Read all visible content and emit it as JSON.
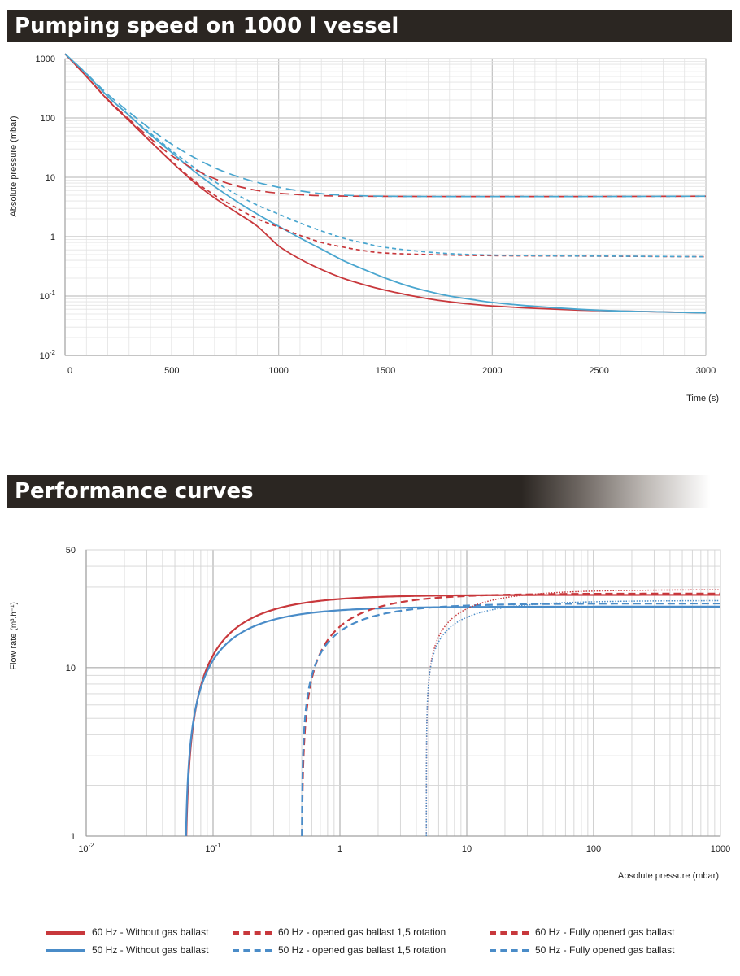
{
  "sections": {
    "pumping_title": "Pumping speed on 1000 l vessel",
    "performance_title": "Performance curves"
  },
  "colors": {
    "red": "#c8383c",
    "blue": "#4a8cc8",
    "teal": "#4aa6cf",
    "dark_blue": "#3a6ea8",
    "grid": "#d9d9d9",
    "banner": "#2b2622"
  },
  "chart_data": [
    {
      "type": "line",
      "title": "Pumping speed on 1000 l vessel",
      "xlabel": "Time (s)",
      "ylabel": "Absolute pressure (mbar)",
      "xlim": [
        0,
        3000
      ],
      "ylim": [
        0.01,
        1000
      ],
      "yscale": "log",
      "grid": true,
      "x_ticks": [
        "0",
        "500",
        "1000",
        "1500",
        "2000",
        "2500",
        "3000"
      ],
      "y_ticks": [
        {
          "base": "1000",
          "exp": ""
        },
        {
          "base": "100",
          "exp": ""
        },
        {
          "base": "10",
          "exp": ""
        },
        {
          "base": "1",
          "exp": ""
        },
        {
          "base": "10",
          "exp": "-1"
        },
        {
          "base": "10",
          "exp": "-2"
        }
      ],
      "series": [
        {
          "color": "red",
          "dash": "solid",
          "points": [
            [
              0,
              1200
            ],
            [
              100,
              500
            ],
            [
              200,
              200
            ],
            [
              300,
              90
            ],
            [
              400,
              40
            ],
            [
              500,
              18
            ],
            [
              600,
              8.5
            ],
            [
              700,
              4.5
            ],
            [
              800,
              2.6
            ],
            [
              900,
              1.5
            ],
            [
              1000,
              0.7
            ],
            [
              1100,
              0.42
            ],
            [
              1200,
              0.28
            ],
            [
              1300,
              0.2
            ],
            [
              1400,
              0.155
            ],
            [
              1500,
              0.125
            ],
            [
              1600,
              0.105
            ],
            [
              1700,
              0.09
            ],
            [
              1800,
              0.08
            ],
            [
              1900,
              0.073
            ],
            [
              2000,
              0.068
            ],
            [
              2200,
              0.062
            ],
            [
              2400,
              0.058
            ],
            [
              2600,
              0.056
            ],
            [
              2800,
              0.054
            ],
            [
              3000,
              0.052
            ]
          ]
        },
        {
          "color": "teal",
          "dash": "solid",
          "points": [
            [
              0,
              1200
            ],
            [
              100,
              550
            ],
            [
              200,
              230
            ],
            [
              300,
              110
            ],
            [
              400,
              52
            ],
            [
              500,
              26
            ],
            [
              600,
              13
            ],
            [
              700,
              7
            ],
            [
              800,
              4
            ],
            [
              900,
              2.4
            ],
            [
              1000,
              1.5
            ],
            [
              1100,
              0.95
            ],
            [
              1200,
              0.62
            ],
            [
              1300,
              0.4
            ],
            [
              1400,
              0.28
            ],
            [
              1500,
              0.2
            ],
            [
              1600,
              0.15
            ],
            [
              1700,
              0.12
            ],
            [
              1800,
              0.1
            ],
            [
              1900,
              0.088
            ],
            [
              2000,
              0.078
            ],
            [
              2200,
              0.067
            ],
            [
              2400,
              0.06
            ],
            [
              2600,
              0.056
            ],
            [
              2800,
              0.054
            ],
            [
              3000,
              0.052
            ]
          ]
        },
        {
          "color": "red",
          "dash": "dotted",
          "points": [
            [
              0,
              1200
            ],
            [
              100,
              500
            ],
            [
              200,
              200
            ],
            [
              300,
              90
            ],
            [
              400,
              40
            ],
            [
              500,
              18.5
            ],
            [
              600,
              9
            ],
            [
              700,
              5
            ],
            [
              800,
              3.1
            ],
            [
              900,
              2
            ],
            [
              1000,
              1.45
            ],
            [
              1100,
              1.05
            ],
            [
              1200,
              0.8
            ],
            [
              1300,
              0.67
            ],
            [
              1400,
              0.58
            ],
            [
              1500,
              0.53
            ],
            [
              1700,
              0.5
            ],
            [
              2000,
              0.48
            ],
            [
              2500,
              0.47
            ],
            [
              3000,
              0.46
            ]
          ]
        },
        {
          "color": "teal",
          "dash": "dotted",
          "points": [
            [
              0,
              1200
            ],
            [
              100,
              550
            ],
            [
              200,
              230
            ],
            [
              300,
              110
            ],
            [
              400,
              55
            ],
            [
              500,
              28
            ],
            [
              600,
              15
            ],
            [
              700,
              8.5
            ],
            [
              800,
              5.2
            ],
            [
              900,
              3.4
            ],
            [
              1000,
              2.4
            ],
            [
              1100,
              1.7
            ],
            [
              1200,
              1.25
            ],
            [
              1300,
              0.95
            ],
            [
              1400,
              0.78
            ],
            [
              1500,
              0.66
            ],
            [
              1700,
              0.55
            ],
            [
              1900,
              0.5
            ],
            [
              2200,
              0.48
            ],
            [
              2600,
              0.47
            ],
            [
              3000,
              0.46
            ]
          ]
        },
        {
          "color": "red",
          "dash": "dashed",
          "points": [
            [
              0,
              1200
            ],
            [
              100,
              500
            ],
            [
              200,
              205
            ],
            [
              300,
              95
            ],
            [
              400,
              45
            ],
            [
              500,
              23
            ],
            [
              600,
              14
            ],
            [
              700,
              9.5
            ],
            [
              800,
              7.2
            ],
            [
              900,
              6
            ],
            [
              1000,
              5.4
            ],
            [
              1100,
              5.1
            ],
            [
              1200,
              4.9
            ],
            [
              1400,
              4.8
            ],
            [
              1800,
              4.75
            ],
            [
              2400,
              4.75
            ],
            [
              3000,
              4.8
            ]
          ]
        },
        {
          "color": "teal",
          "dash": "dashed",
          "points": [
            [
              0,
              1200
            ],
            [
              100,
              560
            ],
            [
              200,
              250
            ],
            [
              300,
              125
            ],
            [
              400,
              65
            ],
            [
              500,
              36
            ],
            [
              600,
              22
            ],
            [
              700,
              14.5
            ],
            [
              800,
              10.5
            ],
            [
              900,
              8.2
            ],
            [
              1000,
              6.8
            ],
            [
              1100,
              5.9
            ],
            [
              1200,
              5.3
            ],
            [
              1300,
              5
            ],
            [
              1500,
              4.8
            ],
            [
              1800,
              4.75
            ],
            [
              2400,
              4.75
            ],
            [
              3000,
              4.8
            ]
          ]
        }
      ]
    },
    {
      "type": "line",
      "title": "Performance curves",
      "xlabel": "Absolute pressure (mbar)",
      "ylabel": "Flow rate",
      "ylabel_unit": "(m³.h⁻¹)",
      "xlim": [
        0.01,
        1000
      ],
      "ylim": [
        1,
        50
      ],
      "xscale": "log",
      "yscale": "log",
      "grid": true,
      "x_ticks": [
        {
          "base": "10",
          "exp": "-2"
        },
        {
          "base": "10",
          "exp": "-1"
        },
        {
          "base": "1",
          "exp": ""
        },
        {
          "base": "10",
          "exp": ""
        },
        {
          "base": "100",
          "exp": ""
        },
        {
          "base": "1000",
          "exp": ""
        }
      ],
      "y_ticks": [
        "50",
        "10",
        "1"
      ],
      "series": [
        {
          "name": "60 Hz - Without gas ballast",
          "color": "red",
          "dash": "solid",
          "p0": 0.06,
          "smax": 27.0,
          "k": 0.9
        },
        {
          "name": "50 Hz - Without gas ballast",
          "color": "blue",
          "dash": "solid",
          "p0": 0.06,
          "smax": 23.0,
          "k": 0.8
        },
        {
          "name": "60 Hz - opened gas ballast 1,5 rotation",
          "color": "red",
          "dash": "dashed",
          "p0": 0.5,
          "smax": 27.5,
          "k": 0.65
        },
        {
          "name": "50 Hz - opened gas ballast 1,5 rotation",
          "color": "blue",
          "dash": "dashed",
          "p0": 0.5,
          "smax": 24.0,
          "k": 0.55
        },
        {
          "name": "60 Hz - Fully opened gas ballast",
          "color": "red",
          "dash": "dotted",
          "p0": 4.8,
          "smax": 29.0,
          "k": 0.4
        },
        {
          "name": "50 Hz - Fully opened gas ballast",
          "color": "blue",
          "dash": "dotted",
          "p0": 4.8,
          "smax": 25.0,
          "k": 0.35
        }
      ]
    }
  ]
}
